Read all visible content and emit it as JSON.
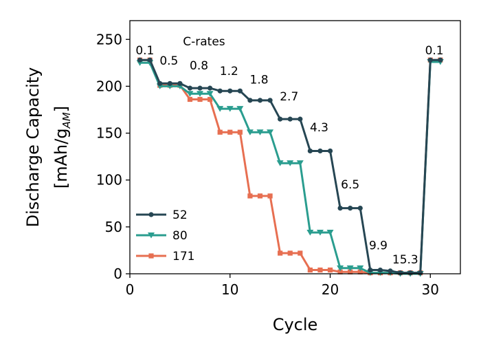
{
  "chart_data": {
    "type": "line",
    "title": "",
    "xlabel": "Cycle",
    "ylabel_line1": "Discharge Capacity",
    "ylabel_line2_prefix": "[mAh/g",
    "ylabel_line2_sub": "AM",
    "ylabel_line2_suffix": "]",
    "xlim": [
      0,
      33
    ],
    "ylim": [
      0,
      270
    ],
    "xticks": [
      0,
      10,
      20,
      30
    ],
    "yticks": [
      0,
      50,
      100,
      150,
      200,
      250
    ],
    "grid": false,
    "legend_position": "lower-left",
    "crate_header": "C-rates",
    "crate_labels": [
      {
        "text": "0.1",
        "x": 1.5,
        "y": 234
      },
      {
        "text": "0.5",
        "x": 3.9,
        "y": 223
      },
      {
        "text": "0.8",
        "x": 6.9,
        "y": 218
      },
      {
        "text": "1.2",
        "x": 9.9,
        "y": 212
      },
      {
        "text": "1.8",
        "x": 12.9,
        "y": 203
      },
      {
        "text": "2.7",
        "x": 15.9,
        "y": 185
      },
      {
        "text": "4.3",
        "x": 18.9,
        "y": 152
      },
      {
        "text": "6.5",
        "x": 22.0,
        "y": 91
      },
      {
        "text": "9.9",
        "x": 24.8,
        "y": 26
      },
      {
        "text": "15.3",
        "x": 27.5,
        "y": 11
      },
      {
        "text": "0.1",
        "x": 30.4,
        "y": 234
      }
    ],
    "x": [
      1,
      2,
      3,
      4,
      5,
      6,
      7,
      8,
      9,
      10,
      11,
      12,
      13,
      14,
      15,
      16,
      17,
      18,
      19,
      20,
      21,
      22,
      23,
      24,
      25,
      26,
      27,
      28,
      29,
      30,
      31
    ],
    "series": [
      {
        "name": "52",
        "color": "#264653",
        "marker": "circle",
        "values": [
          228,
          228,
          203,
          203,
          203,
          198,
          198,
          198,
          195,
          195,
          195,
          185,
          185,
          185,
          165,
          165,
          165,
          131,
          131,
          131,
          70,
          70,
          70,
          4,
          4,
          3,
          1,
          1,
          1,
          228,
          228
        ]
      },
      {
        "name": "80",
        "color": "#2a9d8f",
        "marker": "triangle-down",
        "values": [
          225,
          225,
          200,
          200,
          200,
          192,
          192,
          192,
          176,
          176,
          176,
          151,
          151,
          151,
          118,
          118,
          118,
          44,
          44,
          44,
          6,
          6,
          6,
          1,
          1,
          1,
          0,
          0,
          0,
          226,
          226
        ]
      },
      {
        "name": "171",
        "color": "#e76f51",
        "marker": "square",
        "values": [
          228,
          228,
          201,
          201,
          201,
          186,
          186,
          186,
          151,
          151,
          151,
          83,
          83,
          83,
          22,
          22,
          22,
          4,
          4,
          4,
          2,
          2,
          2,
          1,
          1,
          1,
          1,
          1,
          1,
          228,
          228
        ]
      }
    ]
  }
}
